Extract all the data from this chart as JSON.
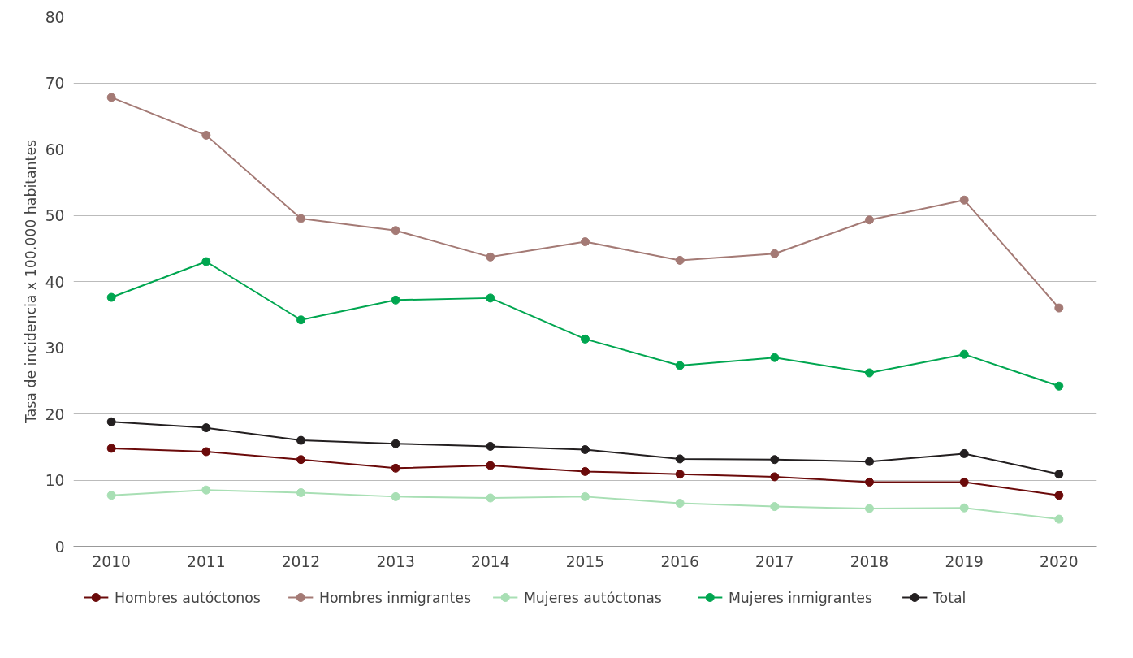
{
  "chart_data": {
    "type": "line",
    "ylabel": "Tasa de incidencia x 100.000 habitantes",
    "categories": [
      "2010",
      "2011",
      "2012",
      "2013",
      "2014",
      "2015",
      "2016",
      "2017",
      "2018",
      "2019",
      "2020"
    ],
    "series": [
      {
        "name": "Hombres autóctonos",
        "color": "#6b0a0a",
        "values": [
          14.8,
          14.3,
          13.1,
          11.8,
          12.2,
          11.3,
          10.9,
          10.5,
          9.7,
          9.7,
          7.7
        ]
      },
      {
        "name": "Hombres inmigrantes",
        "color": "#a47a75",
        "values": [
          67.8,
          62.1,
          49.5,
          47.7,
          43.7,
          46.0,
          43.2,
          44.2,
          49.3,
          52.3,
          36.0
        ]
      },
      {
        "name": "Mujeres autóctonas",
        "color": "#a8dfb4",
        "values": [
          7.7,
          8.5,
          8.1,
          7.5,
          7.3,
          7.5,
          6.5,
          6.0,
          5.7,
          5.8,
          4.1
        ]
      },
      {
        "name": "Mujeres inmigrantes",
        "color": "#00a650",
        "values": [
          37.6,
          43.0,
          34.2,
          37.2,
          37.5,
          31.3,
          27.3,
          28.5,
          26.2,
          29.0,
          24.2
        ]
      },
      {
        "name": "Total",
        "color": "#231f20",
        "values": [
          18.8,
          17.9,
          16.0,
          15.5,
          15.1,
          14.6,
          13.2,
          13.1,
          12.8,
          14.0,
          10.9
        ]
      }
    ],
    "ylim": [
      0,
      80
    ],
    "yticks": [
      0,
      10,
      20,
      30,
      40,
      50,
      60,
      70,
      80
    ],
    "grid": "y",
    "legend": "bottom",
    "marker": "circle",
    "line_style": "solid"
  }
}
